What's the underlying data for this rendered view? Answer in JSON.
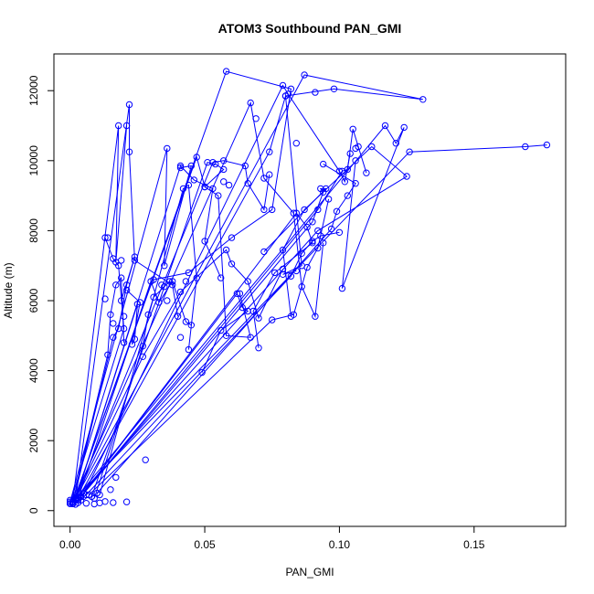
{
  "chart_data": {
    "type": "scatter",
    "title": "ATOM3 Southbound PAN_GMI",
    "xlabel": "PAN_GMI",
    "ylabel": "Altitude (m)",
    "xlim": [
      -0.006,
      0.184
    ],
    "ylim": [
      -450,
      13050
    ],
    "xticks": [
      0.0,
      0.05,
      0.1,
      0.15
    ],
    "xtick_labels": [
      "0.00",
      "0.05",
      "0.10",
      "0.15"
    ],
    "yticks": [
      0,
      2000,
      4000,
      6000,
      8000,
      10000,
      12000
    ],
    "ytick_labels": [
      "0",
      "2000",
      "4000",
      "6000",
      "8000",
      "10000",
      "12000"
    ],
    "grid": false,
    "legend": "none",
    "color": "#0000ff",
    "marker": "open-circle",
    "series": [
      {
        "x": [
          0.001,
          0.027,
          0.041,
          0.058,
          0.06,
          0.066,
          0.07,
          0.079
        ],
        "y": [
          200,
          4400,
          6250,
          7450,
          7050,
          6550,
          5500,
          6900
        ]
      },
      {
        "x": [
          0.0,
          0.02,
          0.018,
          0.016,
          0.013
        ],
        "y": [
          200,
          5200,
          7000,
          7200,
          7800
        ]
      },
      {
        "x": [
          0.001,
          0.018,
          0.017,
          0.021
        ],
        "y": [
          250,
          11000,
          7100,
          11000
        ]
      },
      {
        "x": [
          0.002,
          0.022,
          0.022,
          0.024,
          0.038,
          0.04
        ],
        "y": [
          300,
          11600,
          10250,
          7150,
          6450,
          5550
        ]
      },
      {
        "x": [
          0.0,
          0.036,
          0.035,
          0.045,
          0.041
        ],
        "y": [
          250,
          10350,
          7000,
          9850,
          9800
        ]
      },
      {
        "x": [
          0.001,
          0.058,
          0.082,
          0.075,
          0.06,
          0.044,
          0.031
        ],
        "y": [
          200,
          12550,
          12050,
          8600,
          7800,
          6800,
          6600
        ]
      },
      {
        "x": [
          0.001,
          0.067,
          0.072,
          0.083,
          0.086,
          0.091,
          0.094
        ],
        "y": [
          250,
          11650,
          9500,
          8500,
          6400,
          5550,
          7650
        ]
      },
      {
        "x": [
          0.001,
          0.087,
          0.131,
          0.098,
          0.08
        ],
        "y": [
          200,
          12450,
          11750,
          12050,
          11850
        ]
      },
      {
        "x": [
          0.0,
          0.126,
          0.169,
          0.177
        ],
        "y": [
          200,
          10250,
          10400,
          10450
        ]
      },
      {
        "x": [
          0.001,
          0.117,
          0.121,
          0.124,
          0.101,
          0.106
        ],
        "y": [
          250,
          11000,
          10500,
          10950,
          6350,
          10000
        ]
      },
      {
        "x": [
          0.002,
          0.092,
          0.125,
          0.112,
          0.087,
          0.079,
          0.082
        ],
        "y": [
          300,
          8000,
          9550,
          10400,
          8600,
          7450,
          5550
        ]
      },
      {
        "x": [
          0.002,
          0.053,
          0.057,
          0.065,
          0.066,
          0.072,
          0.074
        ],
        "y": [
          350,
          9950,
          10000,
          9850,
          9350,
          8600,
          9600
        ]
      },
      {
        "x": [
          0.003,
          0.074,
          0.08,
          0.086,
          0.079,
          0.084
        ],
        "y": [
          350,
          10250,
          11850,
          7000,
          6750,
          6850
        ]
      },
      {
        "x": [
          0.001,
          0.047,
          0.05,
          0.055,
          0.058,
          0.067,
          0.063
        ],
        "y": [
          200,
          10100,
          9250,
          9000,
          5000,
          4950,
          6200
        ]
      },
      {
        "x": [
          0.004,
          0.092,
          0.101,
          0.103,
          0.105,
          0.107,
          0.11
        ],
        "y": [
          400,
          8600,
          9700,
          9750,
          10900,
          10400,
          9650
        ]
      },
      {
        "x": [
          0.002,
          0.041,
          0.046,
          0.053,
          0.05,
          0.056
        ],
        "y": [
          300,
          9850,
          9450,
          9200,
          7700,
          6650
        ]
      },
      {
        "x": [
          0.003,
          0.09,
          0.094,
          0.093,
          0.095,
          0.072
        ],
        "y": [
          300,
          8250,
          9100,
          9200,
          9200,
          7400
        ]
      },
      {
        "x": [
          0.004,
          0.084,
          0.088,
          0.09,
          0.076,
          0.068,
          0.07
        ],
        "y": [
          400,
          8500,
          8100,
          7650,
          6800,
          5700,
          4650
        ]
      },
      {
        "x": [
          0.005,
          0.062,
          0.064,
          0.066,
          0.056,
          0.049
        ],
        "y": [
          500,
          6200,
          5800,
          5700,
          5150,
          3950
        ]
      },
      {
        "x": [
          0.003,
          0.03,
          0.033,
          0.038,
          0.043,
          0.045
        ],
        "y": [
          350,
          6550,
          5950,
          6550,
          5400,
          5300
        ]
      },
      {
        "x": [
          0.002,
          0.025,
          0.024,
          0.023,
          0.026,
          0.021
        ],
        "y": [
          300,
          5900,
          4900,
          4750,
          5950,
          6300
        ]
      },
      {
        "x": [
          0.001,
          0.014,
          0.015,
          0.017,
          0.019,
          0.02
        ],
        "y": [
          250,
          4450,
          5600,
          6450,
          6650,
          4800
        ]
      },
      {
        "x": [
          0.006,
          0.082,
          0.086,
          0.09,
          0.093,
          0.1
        ],
        "y": [
          450,
          6700,
          7350,
          7700,
          7850,
          7950
        ]
      },
      {
        "x": [
          0.01,
          0.097,
          0.099,
          0.103,
          0.106,
          0.094
        ],
        "y": [
          500,
          8050,
          8550,
          9000,
          9350,
          9900
        ]
      },
      {
        "x": [
          0.007,
          0.075,
          0.083,
          0.088,
          0.092,
          0.096
        ],
        "y": [
          450,
          5450,
          5600,
          6950,
          7500,
          8900
        ]
      },
      {
        "x": [
          0.001,
          0.016,
          0.018,
          0.021,
          0.024,
          0.019
        ],
        "y": [
          200,
          4950,
          5200,
          6450,
          7250,
          6000
        ]
      },
      {
        "x": [
          0.008,
          0.051,
          0.054,
          0.057,
          0.05
        ],
        "y": [
          400,
          9950,
          9900,
          9750,
          9250
        ]
      },
      {
        "x": [
          0.011,
          0.042,
          0.044,
          0.047,
          0.044
        ],
        "y": [
          450,
          9200,
          9300,
          6650,
          4600
        ]
      },
      {
        "x": [
          0.009,
          0.027,
          0.029,
          0.031,
          0.035,
          0.037
        ],
        "y": [
          350,
          4700,
          5600,
          6100,
          6400,
          6550
        ]
      },
      {
        "x": [
          0.004,
          0.079,
          0.081,
          0.1,
          0.102,
          0.104
        ],
        "y": [
          300,
          12150,
          11900,
          9700,
          9400,
          10200
        ]
      }
    ],
    "scatter_points": [
      {
        "x": 0.0,
        "y": 200
      },
      {
        "x": 0.001,
        "y": 250
      },
      {
        "x": 0.003,
        "y": 230
      },
      {
        "x": 0.006,
        "y": 210
      },
      {
        "x": 0.009,
        "y": 190
      },
      {
        "x": 0.011,
        "y": 220
      },
      {
        "x": 0.013,
        "y": 260
      },
      {
        "x": 0.016,
        "y": 230
      },
      {
        "x": 0.021,
        "y": 250
      },
      {
        "x": 0.015,
        "y": 600
      },
      {
        "x": 0.017,
        "y": 950
      },
      {
        "x": 0.028,
        "y": 1450
      },
      {
        "x": 0.005,
        "y": 400
      },
      {
        "x": 0.002,
        "y": 180
      },
      {
        "x": 0.0,
        "y": 300
      },
      {
        "x": 0.014,
        "y": 7800
      },
      {
        "x": 0.013,
        "y": 6050
      },
      {
        "x": 0.016,
        "y": 5350
      },
      {
        "x": 0.019,
        "y": 7150
      },
      {
        "x": 0.02,
        "y": 5550
      },
      {
        "x": 0.034,
        "y": 6450
      },
      {
        "x": 0.036,
        "y": 6000
      },
      {
        "x": 0.041,
        "y": 4950
      },
      {
        "x": 0.043,
        "y": 6550
      },
      {
        "x": 0.057,
        "y": 9400
      },
      {
        "x": 0.059,
        "y": 9300
      },
      {
        "x": 0.069,
        "y": 11200
      },
      {
        "x": 0.091,
        "y": 11950
      },
      {
        "x": 0.084,
        "y": 10500
      },
      {
        "x": 0.106,
        "y": 10350
      }
    ]
  }
}
